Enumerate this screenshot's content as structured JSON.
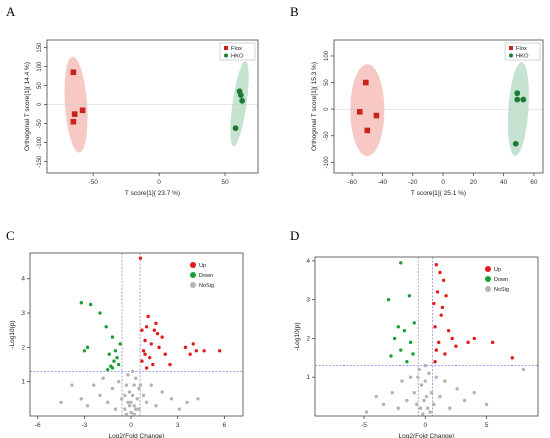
{
  "panels": {
    "A": {
      "letter": "A"
    },
    "B": {
      "letter": "B"
    },
    "C": {
      "letter": "C"
    },
    "D": {
      "letter": "D"
    }
  },
  "colors": {
    "up": "#e41a1c",
    "down": "#1a9e3a",
    "nosig": "#b3b3b3",
    "flox": "#c9241b",
    "hko": "#1e7a36",
    "flox_ellipse": "#f4b6b0",
    "hko_ellipse": "#b7dcc4",
    "threshold": "#6b6bdd"
  },
  "chart_data": [
    {
      "panel": "A",
      "type": "scatter",
      "xlabel": "T score[1]( 23.7 %)",
      "ylabel": "Orthogonal T score[1]( 14.4 %)",
      "xlim": [
        -85,
        75
      ],
      "ylim": [
        -180,
        170
      ],
      "xticks": [
        -50,
        0,
        50
      ],
      "yticks": [
        -150,
        -100,
        -50,
        0,
        50,
        100,
        150
      ],
      "legend_position": "top-right",
      "series": [
        {
          "name": "Flox",
          "marker": "square",
          "points": [
            [
              -65,
              85
            ],
            [
              -64,
              -25
            ],
            [
              -65,
              -45
            ],
            [
              -58,
              -15
            ]
          ]
        },
        {
          "name": "HKO",
          "marker": "circle",
          "points": [
            [
              61,
              35
            ],
            [
              62,
              25
            ],
            [
              63,
              10
            ],
            [
              58,
              -62
            ]
          ]
        }
      ]
    },
    {
      "panel": "B",
      "type": "scatter",
      "xlabel": "T score[1]( 25.1 %)",
      "ylabel": "Orthogonal T score[1]( 15.3 %)",
      "xlim": [
        -72,
        66
      ],
      "ylim": [
        -120,
        130
      ],
      "xticks": [
        -60,
        -40,
        -20,
        0,
        20,
        40,
        60
      ],
      "yticks": [
        -100,
        -50,
        0,
        50,
        100
      ],
      "legend_position": "top-right",
      "series": [
        {
          "name": "Flox",
          "marker": "square",
          "points": [
            [
              -51,
              50
            ],
            [
              -55,
              -5
            ],
            [
              -44,
              -12
            ],
            [
              -50,
              -40
            ]
          ]
        },
        {
          "name": "HKO",
          "marker": "circle",
          "points": [
            [
              49,
              30
            ],
            [
              49,
              18
            ],
            [
              53,
              18
            ],
            [
              48,
              -65
            ]
          ]
        }
      ]
    },
    {
      "panel": "C",
      "type": "scatter",
      "xlabel": "Log2(Fold Change)",
      "ylabel": "-Log10(p)",
      "xlim": [
        -6.5,
        7.2
      ],
      "ylim": [
        0,
        4.75
      ],
      "xticks": [
        -6,
        -3,
        0,
        3,
        6
      ],
      "yticks": [
        1,
        2,
        3,
        4
      ],
      "vlines": [
        -0.58,
        0.58
      ],
      "hline": 1.3,
      "legend_position": "top-right",
      "series": [
        {
          "name": "Up",
          "points": [
            [
              0.6,
              4.6
            ],
            [
              0.7,
              2.5
            ],
            [
              0.9,
              2.2
            ],
            [
              1.0,
              2.6
            ],
            [
              1.1,
              2.9
            ],
            [
              1.3,
              2.1
            ],
            [
              1.5,
              2.5
            ],
            [
              1.6,
              2.7
            ],
            [
              1.8,
              2.0
            ],
            [
              2.0,
              2.3
            ],
            [
              2.2,
              1.8
            ],
            [
              2.5,
              1.5
            ],
            [
              0.8,
              1.9
            ],
            [
              1.2,
              1.7
            ],
            [
              0.7,
              1.6
            ],
            [
              1.4,
              1.5
            ],
            [
              1.0,
              1.4
            ],
            [
              3.5,
              2.0
            ],
            [
              4.0,
              2.1
            ],
            [
              4.2,
              1.9
            ],
            [
              4.7,
              1.9
            ],
            [
              5.7,
              1.9
            ],
            [
              3.8,
              1.8
            ],
            [
              1.7,
              2.4
            ],
            [
              0.9,
              1.8
            ]
          ]
        },
        {
          "name": "Down",
          "points": [
            [
              -3.2,
              3.3
            ],
            [
              -2.6,
              3.25
            ],
            [
              -2.0,
              3.0
            ],
            [
              -1.6,
              2.6
            ],
            [
              -1.2,
              2.3
            ],
            [
              -1.0,
              1.9
            ],
            [
              -1.4,
              1.8
            ],
            [
              -0.9,
              1.7
            ],
            [
              -1.1,
              1.6
            ],
            [
              -0.8,
              1.5
            ],
            [
              -1.3,
              1.45
            ],
            [
              -2.8,
              2.0
            ],
            [
              -3.0,
              1.9
            ],
            [
              -0.7,
              2.1
            ],
            [
              -1.5,
              1.35
            ],
            [
              -1.2,
              1.4
            ]
          ]
        },
        {
          "name": "NoSig",
          "points": [
            [
              -4.5,
              0.4
            ],
            [
              -3.8,
              0.9
            ],
            [
              -3.2,
              0.5
            ],
            [
              -2.8,
              0.3
            ],
            [
              -2.4,
              0.9
            ],
            [
              -2.0,
              0.6
            ],
            [
              -1.8,
              1.1
            ],
            [
              -1.5,
              0.4
            ],
            [
              -1.2,
              0.8
            ],
            [
              -1.0,
              0.2
            ],
            [
              -0.8,
              1.0
            ],
            [
              -0.6,
              0.5
            ],
            [
              -0.4,
              0.2
            ],
            [
              -0.3,
              0.9
            ],
            [
              -0.2,
              0.4
            ],
            [
              -0.1,
              0.7
            ],
            [
              0.0,
              0.1
            ],
            [
              0.1,
              0.6
            ],
            [
              0.2,
              0.3
            ],
            [
              0.3,
              1.1
            ],
            [
              0.4,
              0.5
            ],
            [
              0.5,
              0.8
            ],
            [
              0.5,
              0.2
            ],
            [
              0.6,
              0.9
            ],
            [
              0.8,
              0.6
            ],
            [
              1.0,
              0.4
            ],
            [
              1.3,
              0.9
            ],
            [
              1.6,
              0.3
            ],
            [
              2.0,
              0.7
            ],
            [
              2.6,
              0.5
            ],
            [
              3.1,
              0.2
            ],
            [
              3.6,
              0.4
            ],
            [
              4.3,
              0.5
            ],
            [
              -0.3,
              0.05
            ],
            [
              0.2,
              0.05
            ],
            [
              -0.1,
              0.3
            ],
            [
              0.3,
              0.2
            ],
            [
              -0.4,
              0.6
            ],
            [
              0.0,
              0.4
            ],
            [
              0.2,
              0.9
            ],
            [
              -0.2,
              1.2
            ],
            [
              0.1,
              1.3
            ]
          ]
        }
      ]
    },
    {
      "panel": "D",
      "type": "scatter",
      "xlabel": "Log2(Fold Change)",
      "ylabel": "-Log10(p)",
      "xlim": [
        -9,
        9.2
      ],
      "ylim": [
        0,
        4.1
      ],
      "xticks": [
        -5,
        0,
        5
      ],
      "yticks": [
        1,
        2,
        3,
        4
      ],
      "vlines": [
        -0.58,
        0.58
      ],
      "hline": 1.3,
      "legend_position": "top-right",
      "series": [
        {
          "name": "Up",
          "points": [
            [
              0.9,
              3.9
            ],
            [
              1.2,
              3.7
            ],
            [
              1.5,
              3.5
            ],
            [
              1.0,
              3.2
            ],
            [
              1.7,
              3.1
            ],
            [
              0.7,
              2.9
            ],
            [
              1.3,
              2.6
            ],
            [
              0.8,
              2.3
            ],
            [
              1.9,
              2.2
            ],
            [
              2.2,
              2.0
            ],
            [
              1.1,
              1.9
            ],
            [
              0.9,
              1.7
            ],
            [
              1.6,
              1.6
            ],
            [
              2.5,
              1.8
            ],
            [
              3.5,
              1.9
            ],
            [
              4.0,
              2.0
            ],
            [
              5.5,
              1.9
            ],
            [
              7.1,
              1.5
            ],
            [
              0.8,
              1.4
            ],
            [
              1.4,
              2.8
            ]
          ]
        },
        {
          "name": "Down",
          "points": [
            [
              -2.0,
              3.95
            ],
            [
              -3.0,
              3.0
            ],
            [
              -2.2,
              2.3
            ],
            [
              -1.7,
              2.2
            ],
            [
              -2.5,
              2.0
            ],
            [
              -1.2,
              1.9
            ],
            [
              -2.0,
              1.7
            ],
            [
              -1.0,
              1.6
            ],
            [
              -2.8,
              1.55
            ],
            [
              -1.5,
              1.4
            ],
            [
              -0.9,
              2.4
            ],
            [
              -1.3,
              3.1
            ]
          ]
        },
        {
          "name": "NoSig",
          "points": [
            [
              -4.8,
              0.1
            ],
            [
              -4.0,
              0.5
            ],
            [
              -3.4,
              0.3
            ],
            [
              -2.7,
              0.6
            ],
            [
              -2.2,
              0.2
            ],
            [
              -1.9,
              0.9
            ],
            [
              -1.5,
              0.4
            ],
            [
              -1.2,
              1.0
            ],
            [
              -0.9,
              0.6
            ],
            [
              -0.7,
              0.3
            ],
            [
              -0.5,
              1.2
            ],
            [
              -0.3,
              0.8
            ],
            [
              -0.1,
              0.4
            ],
            [
              0.0,
              0.9
            ],
            [
              0.2,
              0.2
            ],
            [
              0.3,
              1.1
            ],
            [
              0.5,
              0.6
            ],
            [
              0.7,
              0.3
            ],
            [
              0.9,
              1.0
            ],
            [
              1.2,
              0.5
            ],
            [
              1.6,
              0.9
            ],
            [
              2.0,
              0.2
            ],
            [
              2.6,
              0.7
            ],
            [
              3.2,
              0.4
            ],
            [
              4.0,
              0.6
            ],
            [
              5.0,
              0.3
            ],
            [
              8.0,
              1.2
            ],
            [
              -0.2,
              0.05
            ],
            [
              0.1,
              0.5
            ],
            [
              -0.4,
              0.2
            ],
            [
              0.4,
              0.1
            ],
            [
              0.0,
              1.3
            ],
            [
              -0.6,
              1.0
            ]
          ]
        }
      ]
    }
  ]
}
